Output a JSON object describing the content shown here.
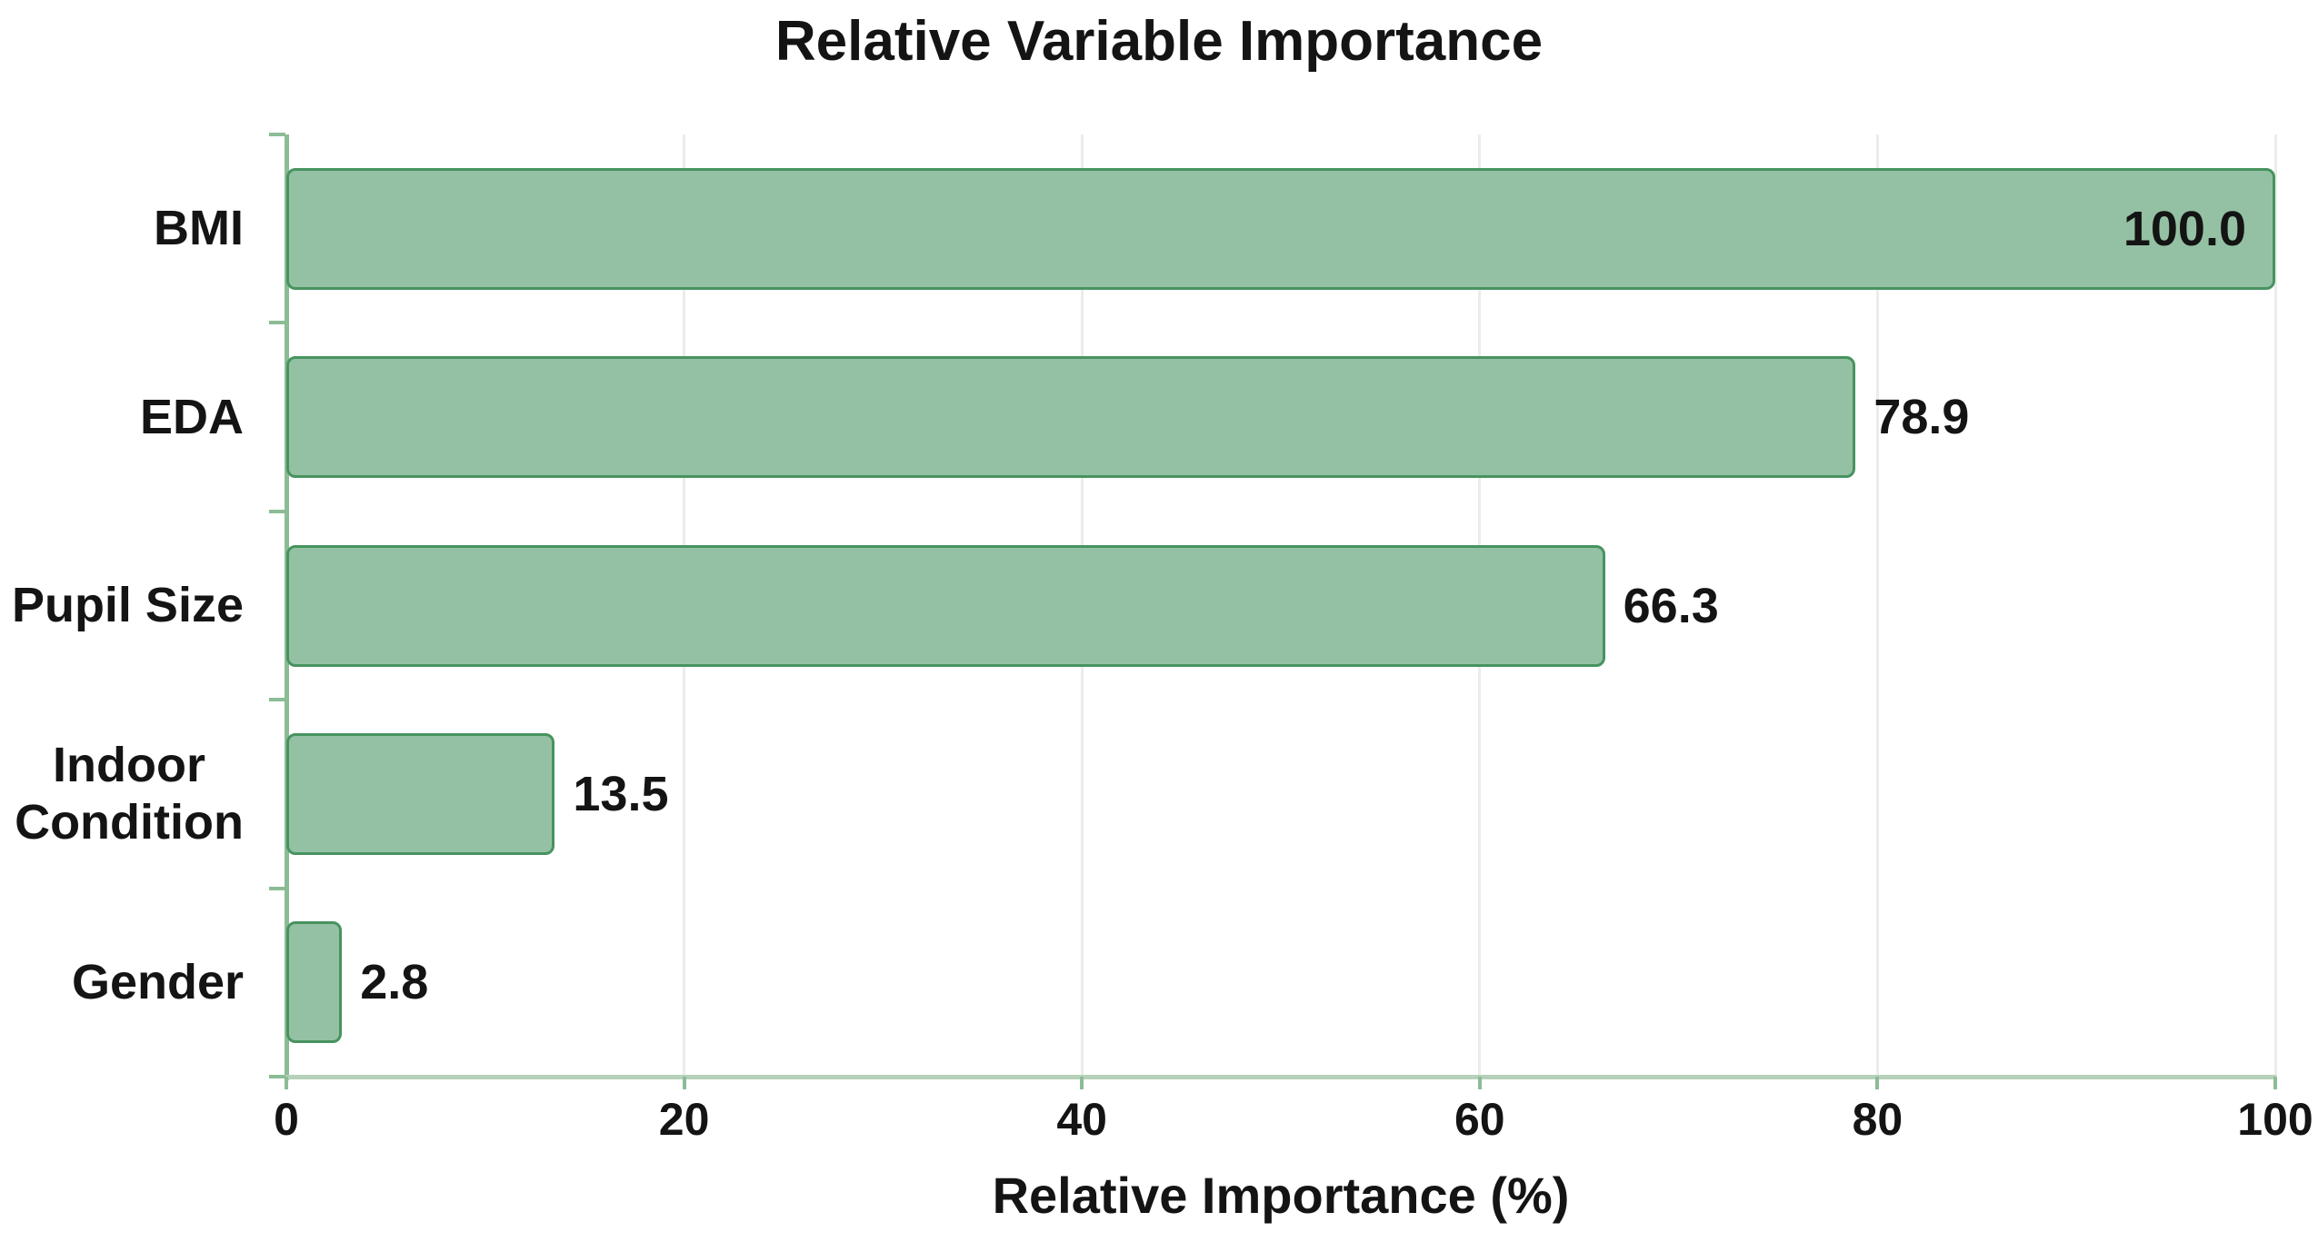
{
  "chart_data": {
    "type": "bar",
    "orientation": "horizontal",
    "title": "Relative Variable Importance",
    "xlabel": "Relative Importance (%)",
    "ylabel": "",
    "categories": [
      "BMI",
      "EDA",
      "Pupil Size",
      "Indoor\nCondition",
      "Gender"
    ],
    "values": [
      100.0,
      78.9,
      66.3,
      13.5,
      2.8
    ],
    "value_labels": [
      "100.0",
      "78.9",
      "66.3",
      "13.5",
      "2.8"
    ],
    "value_label_placement": [
      "inside-end",
      "outside-end",
      "outside-end",
      "outside-end",
      "outside-end"
    ],
    "xlim": [
      0,
      100
    ],
    "xticks": [
      0,
      20,
      40,
      60,
      80,
      100
    ],
    "xtick_labels": [
      "0",
      "20",
      "40",
      "60",
      "80",
      "100"
    ],
    "grid": "vertical-light",
    "legend": "none",
    "colors": {
      "bar_fill": "#94c1a3",
      "bar_border": "#47935f",
      "y_axis_line": "#8cbc95",
      "x_axis_line": "#b5d2b9",
      "grid_line": "#e9eee9",
      "text": "#141414"
    }
  }
}
